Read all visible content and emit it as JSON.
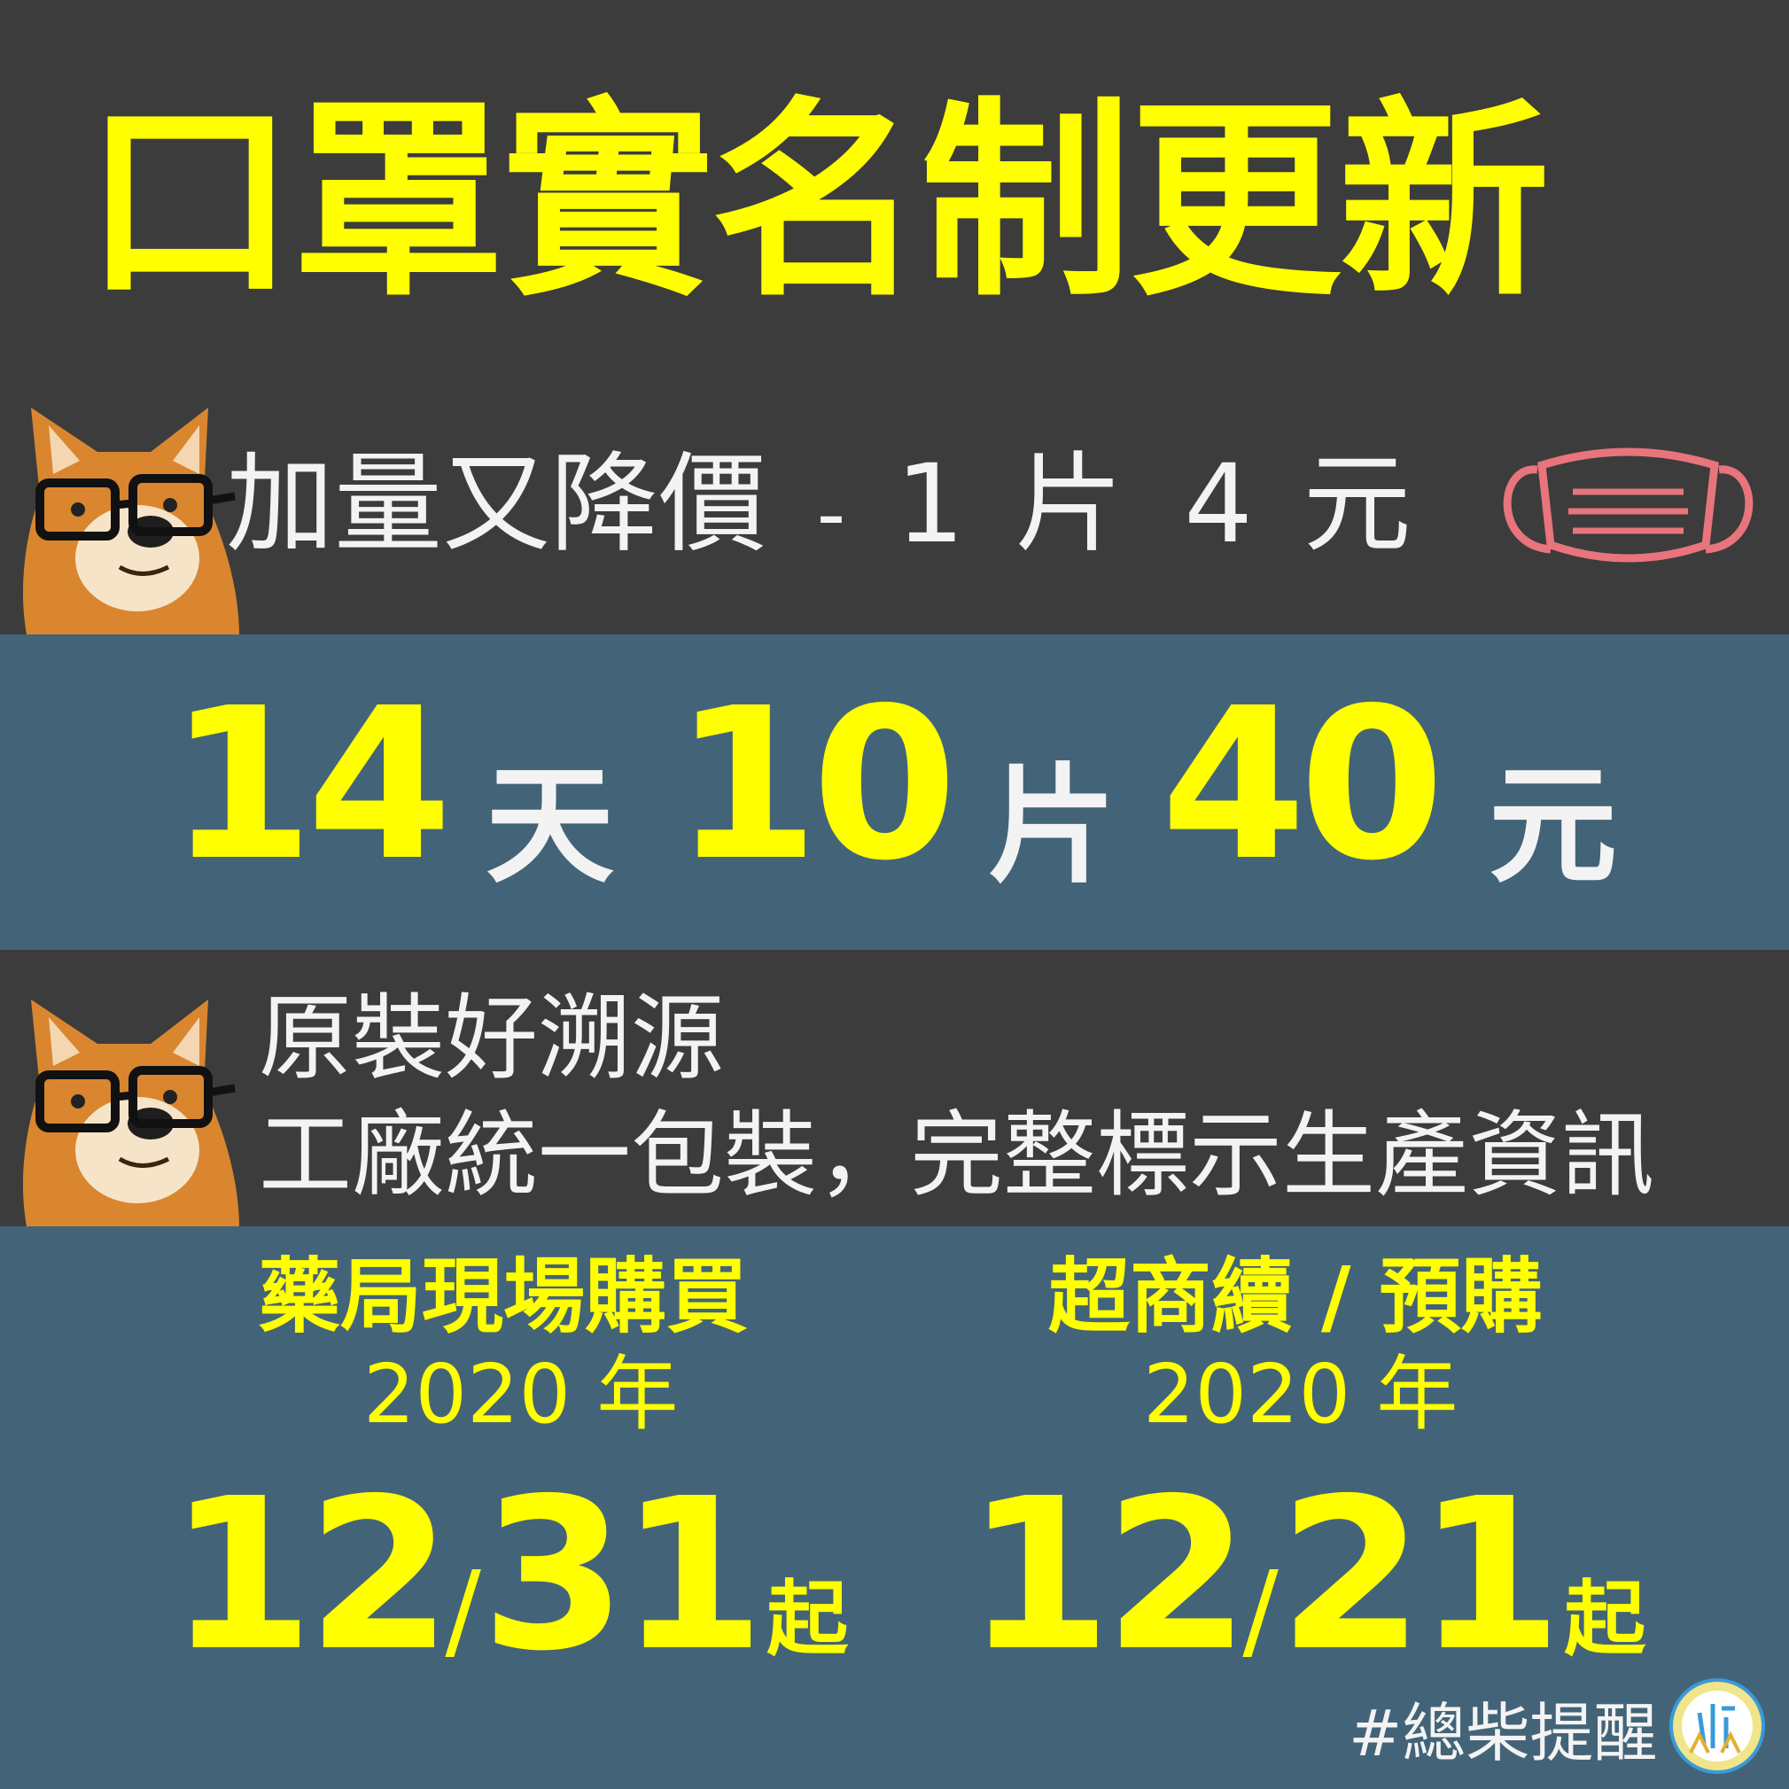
{
  "title": "口罩實名制更新",
  "price_line": {
    "main": "加量又降價",
    "dash": "-",
    "qty": "1",
    "unit_piece": "片",
    "price": "4",
    "unit_money": "元"
  },
  "highlight": {
    "days_num": "14",
    "days_unit": "天",
    "pieces_num": "10",
    "pieces_unit": "片",
    "money_num": "40",
    "money_unit": "元"
  },
  "packaging": {
    "line1": "原裝好溯源",
    "line2": "工廠統一包裝，完整標示生產資訊"
  },
  "pharmacy": {
    "label": "藥局現場購買",
    "year": "2020 年",
    "month": "12",
    "slash": "/",
    "day": "31",
    "suffix": "起"
  },
  "store": {
    "label": "超商續 / 預購",
    "year": "2020 年",
    "month": "12",
    "slash": "/",
    "day": "21",
    "suffix": "起"
  },
  "hashtag": "#總柴提醒",
  "colors": {
    "dark_bg": "#3c3c3c",
    "blue_bg": "#436478",
    "accent_yellow": "#ffff00",
    "text_white": "#f3f3f3",
    "mask_pink": "#e8747c"
  },
  "icons": [
    "shiba-dog-with-glasses-icon",
    "face-mask-icon",
    "ministry-logo-icon"
  ]
}
